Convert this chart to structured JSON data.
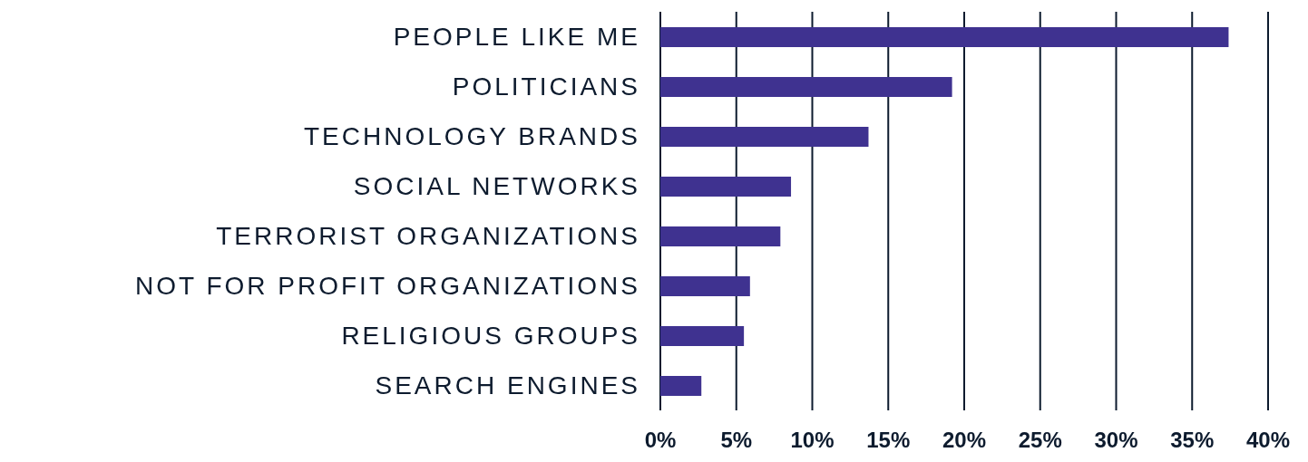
{
  "chart_data": {
    "type": "bar",
    "orientation": "horizontal",
    "categories": [
      "PEOPLE LIKE ME",
      "POLITICIANS",
      "TECHNOLOGY BRANDS",
      "SOCIAL NETWORKS",
      "TERRORIST ORGANIZATIONS",
      "NOT FOR PROFIT ORGANIZATIONS",
      "RELIGIOUS GROUPS",
      "SEARCH ENGINES"
    ],
    "values": [
      37.4,
      19.2,
      13.7,
      8.6,
      7.9,
      5.9,
      5.5,
      2.7
    ],
    "color": "#3f3290",
    "xlim": [
      0,
      40
    ],
    "xticks": [
      {
        "value": 0,
        "label": "0%"
      },
      {
        "value": 5,
        "label": "5%"
      },
      {
        "value": 10,
        "label": "10%"
      },
      {
        "value": 15,
        "label": "15%"
      },
      {
        "value": 20,
        "label": "20%"
      },
      {
        "value": 25,
        "label": "25%"
      },
      {
        "value": 30,
        "label": "30%"
      },
      {
        "value": 35,
        "label": "35%"
      },
      {
        "value": 40,
        "label": "40%"
      }
    ],
    "grid": "x"
  }
}
